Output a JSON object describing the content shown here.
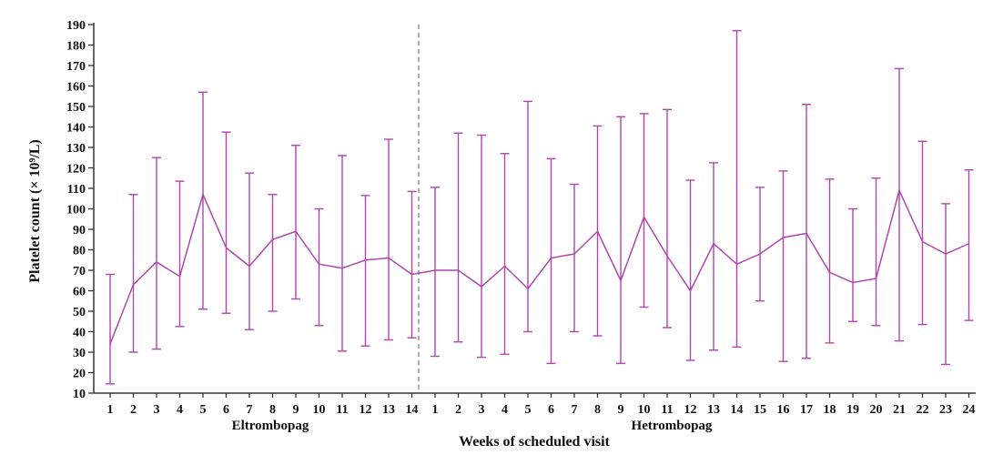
{
  "chart_data": {
    "type": "line",
    "title": "",
    "xlabel": "Weeks of scheduled visit",
    "ylabel": "Platelet count (× 10⁹/L)",
    "ylim": [
      10,
      190
    ],
    "yticks": [
      10,
      20,
      30,
      40,
      50,
      60,
      70,
      80,
      90,
      100,
      110,
      120,
      130,
      140,
      150,
      160,
      170,
      180,
      190
    ],
    "grid": false,
    "colors": {
      "series": "#b045b0",
      "axis": "#333333",
      "divider": "#888888"
    },
    "groups": [
      {
        "name": "Eltrombopag",
        "weeks": [
          "1",
          "2",
          "3",
          "4",
          "5",
          "6",
          "7",
          "8",
          "9",
          "10",
          "11",
          "12",
          "13",
          "14"
        ],
        "mean": [
          34,
          63,
          74,
          67,
          107,
          81,
          72,
          85,
          89,
          73,
          71,
          75,
          76,
          68
        ],
        "lower": [
          14.5,
          30,
          31.5,
          42.5,
          51,
          49,
          41,
          50,
          56,
          43,
          30.5,
          33,
          36,
          37
        ],
        "upper": [
          68,
          107,
          125,
          113.5,
          157,
          137.5,
          117.5,
          107,
          131,
          100,
          126,
          106.5,
          134,
          108.5
        ]
      },
      {
        "name": "Hetrombopag",
        "weeks": [
          "1",
          "2",
          "3",
          "4",
          "5",
          "6",
          "7",
          "8",
          "9",
          "10",
          "11",
          "12",
          "13",
          "14",
          "15",
          "16",
          "17",
          "18",
          "19",
          "20",
          "21",
          "22",
          "23",
          "24"
        ],
        "mean": [
          70,
          70,
          62,
          72,
          61,
          76,
          78,
          89,
          65,
          96,
          77,
          60,
          83,
          73,
          78,
          86,
          88,
          69,
          64,
          66,
          109,
          84,
          78,
          83
        ],
        "lower": [
          28,
          35,
          27.5,
          29,
          40,
          24.5,
          40,
          38,
          24.5,
          52,
          42,
          26,
          31,
          32.5,
          55,
          25.5,
          27,
          34.5,
          45,
          43,
          35.5,
          43.5,
          24,
          45.5
        ],
        "upper": [
          110.5,
          137,
          136,
          127,
          152.5,
          124.5,
          112,
          140.5,
          145,
          146.5,
          148.5,
          114,
          122.5,
          187,
          110.5,
          118.5,
          151,
          114.5,
          100,
          115,
          168.5,
          133,
          102.5,
          119
        ]
      }
    ]
  }
}
